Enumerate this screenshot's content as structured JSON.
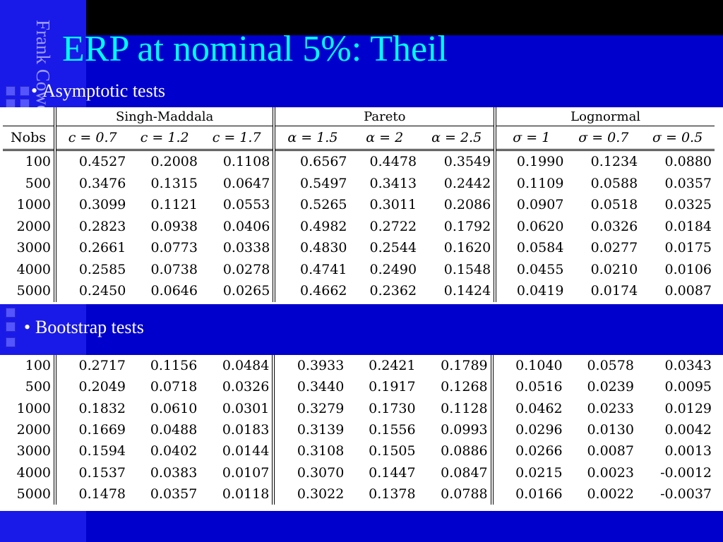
{
  "slide": {
    "title": "ERP at nominal 5%: Theil",
    "side_text": "Frank Cowell: Inequality",
    "bullet1": "Asymptotic tests",
    "bullet2": "Bootstrap tests"
  },
  "table_headers": {
    "groups": [
      "Singh-Maddala",
      "Pareto",
      "Lognormal"
    ],
    "nobs": "Nobs",
    "columns": [
      "c = 0.7",
      "c = 1.2",
      "c = 1.7",
      "α = 1.5",
      "α = 2",
      "α = 2.5",
      "σ = 1",
      "σ = 0.7",
      "σ = 0.5"
    ]
  },
  "asymptotic": [
    [
      "100",
      "0.4527",
      "0.2008",
      "0.1108",
      "0.6567",
      "0.4478",
      "0.3549",
      "0.1990",
      "0.1234",
      "0.0880"
    ],
    [
      "500",
      "0.3476",
      "0.1315",
      "0.0647",
      "0.5497",
      "0.3413",
      "0.2442",
      "0.1109",
      "0.0588",
      "0.0357"
    ],
    [
      "1000",
      "0.3099",
      "0.1121",
      "0.0553",
      "0.5265",
      "0.3011",
      "0.2086",
      "0.0907",
      "0.0518",
      "0.0325"
    ],
    [
      "2000",
      "0.2823",
      "0.0938",
      "0.0406",
      "0.4982",
      "0.2722",
      "0.1792",
      "0.0620",
      "0.0326",
      "0.0184"
    ],
    [
      "3000",
      "0.2661",
      "0.0773",
      "0.0338",
      "0.4830",
      "0.2544",
      "0.1620",
      "0.0584",
      "0.0277",
      "0.0175"
    ],
    [
      "4000",
      "0.2585",
      "0.0738",
      "0.0278",
      "0.4741",
      "0.2490",
      "0.1548",
      "0.0455",
      "0.0210",
      "0.0106"
    ],
    [
      "5000",
      "0.2450",
      "0.0646",
      "0.0265",
      "0.4662",
      "0.2362",
      "0.1424",
      "0.0419",
      "0.0174",
      "0.0087"
    ]
  ],
  "bootstrap": [
    [
      "100",
      "0.2717",
      "0.1156",
      "0.0484",
      "0.3933",
      "0.2421",
      "0.1789",
      "0.1040",
      "0.0578",
      "0.0343"
    ],
    [
      "500",
      "0.2049",
      "0.0718",
      "0.0326",
      "0.3440",
      "0.1917",
      "0.1268",
      "0.0516",
      "0.0239",
      "0.0095"
    ],
    [
      "1000",
      "0.1832",
      "0.0610",
      "0.0301",
      "0.3279",
      "0.1730",
      "0.1128",
      "0.0462",
      "0.0233",
      "0.0129"
    ],
    [
      "2000",
      "0.1669",
      "0.0488",
      "0.0183",
      "0.3139",
      "0.1556",
      "0.0993",
      "0.0296",
      "0.0130",
      "0.0042"
    ],
    [
      "3000",
      "0.1594",
      "0.0402",
      "0.0144",
      "0.3108",
      "0.1505",
      "0.0886",
      "0.0266",
      "0.0087",
      "0.0013"
    ],
    [
      "4000",
      "0.1537",
      "0.0383",
      "0.0107",
      "0.3070",
      "0.1447",
      "0.0847",
      "0.0215",
      "0.0023",
      "-0.0012"
    ],
    [
      "5000",
      "0.1478",
      "0.0357",
      "0.0118",
      "0.3022",
      "0.1378",
      "0.0788",
      "0.0166",
      "0.0022",
      "-0.0037"
    ]
  ]
}
